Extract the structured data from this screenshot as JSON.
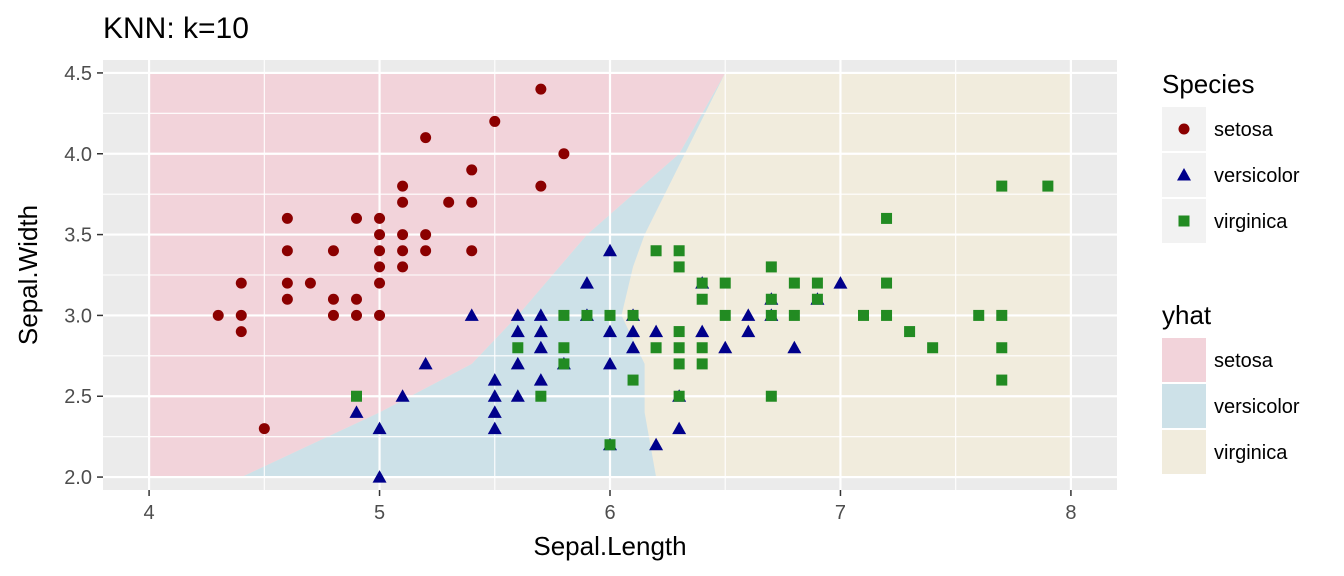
{
  "chart_data": {
    "type": "scatter",
    "title": "KNN: k=10",
    "xlabel": "Sepal.Length",
    "ylabel": "Sepal.Width",
    "xlim": [
      3.8,
      8.2
    ],
    "ylim": [
      1.92,
      4.58
    ],
    "x_ticks": [
      4,
      5,
      6,
      7,
      8
    ],
    "x_tick_labels": [
      "4",
      "5",
      "6",
      "7",
      "8"
    ],
    "y_ticks": [
      2.0,
      2.5,
      3.0,
      3.5,
      4.0,
      4.5
    ],
    "y_tick_labels": [
      "2.0",
      "2.5",
      "3.0",
      "3.5",
      "4.0",
      "4.5"
    ],
    "grid": true,
    "legend_position": "right",
    "legends": [
      {
        "title": "Species",
        "kind": "points",
        "entries": [
          {
            "label": "setosa",
            "color": "#8b0000",
            "shape": "circle"
          },
          {
            "label": "versicolor",
            "color": "#00008b",
            "shape": "triangle"
          },
          {
            "label": "virginica",
            "color": "#228b22",
            "shape": "square"
          }
        ]
      },
      {
        "title": "yhat",
        "kind": "fill",
        "entries": [
          {
            "label": "setosa",
            "color": "#f2d3da"
          },
          {
            "label": "versicolor",
            "color": "#cde1e8"
          },
          {
            "label": "virginica",
            "color": "#f1ecdd"
          }
        ]
      }
    ],
    "decision_regions": {
      "grid_x_range": [
        4.0,
        8.0
      ],
      "grid_y_range": [
        2.0,
        4.5
      ],
      "setosa_versicolor_boundary": [
        [
          4.4,
          2.0
        ],
        [
          5.0,
          2.4
        ],
        [
          5.4,
          2.7
        ],
        [
          5.6,
          3.0
        ],
        [
          5.9,
          3.5
        ],
        [
          6.3,
          4.0
        ],
        [
          6.5,
          4.5
        ]
      ],
      "versicolor_virginica_boundary": [
        [
          6.2,
          2.0
        ],
        [
          6.15,
          2.4
        ],
        [
          6.15,
          2.7
        ],
        [
          6.05,
          3.0
        ],
        [
          6.1,
          3.3
        ],
        [
          6.15,
          3.5
        ]
      ]
    },
    "series": [
      {
        "name": "setosa",
        "color": "#8b0000",
        "shape": "circle",
        "points": [
          [
            5.7,
            4.4
          ],
          [
            5.5,
            4.2
          ],
          [
            5.2,
            4.1
          ],
          [
            5.8,
            4.0
          ],
          [
            5.4,
            3.9
          ],
          [
            5.1,
            3.8
          ],
          [
            5.7,
            3.8
          ],
          [
            5.1,
            3.7
          ],
          [
            5.4,
            3.7
          ],
          [
            5.3,
            3.7
          ],
          [
            4.6,
            3.6
          ],
          [
            5.0,
            3.6
          ],
          [
            4.9,
            3.6
          ],
          [
            5.4,
            3.4
          ],
          [
            5.1,
            3.5
          ],
          [
            5.0,
            3.5
          ],
          [
            5.2,
            3.5
          ],
          [
            4.6,
            3.4
          ],
          [
            4.8,
            3.4
          ],
          [
            5.0,
            3.4
          ],
          [
            5.2,
            3.4
          ],
          [
            5.1,
            3.4
          ],
          [
            5.0,
            3.3
          ],
          [
            5.1,
            3.3
          ],
          [
            4.6,
            3.2
          ],
          [
            4.4,
            3.2
          ],
          [
            4.7,
            3.2
          ],
          [
            5.0,
            3.2
          ],
          [
            4.6,
            3.1
          ],
          [
            4.8,
            3.1
          ],
          [
            4.9,
            3.1
          ],
          [
            5.0,
            3.0
          ],
          [
            4.3,
            3.0
          ],
          [
            4.4,
            3.0
          ],
          [
            4.8,
            3.0
          ],
          [
            4.9,
            3.0
          ],
          [
            4.4,
            2.9
          ],
          [
            4.5,
            2.3
          ]
        ]
      },
      {
        "name": "versicolor",
        "color": "#00008b",
        "shape": "triangle",
        "points": [
          [
            6.0,
            3.4
          ],
          [
            5.9,
            3.2
          ],
          [
            6.4,
            3.2
          ],
          [
            7.0,
            3.2
          ],
          [
            6.7,
            3.1
          ],
          [
            6.9,
            3.1
          ],
          [
            6.7,
            3.0
          ],
          [
            6.6,
            3.0
          ],
          [
            5.9,
            3.0
          ],
          [
            6.1,
            3.0
          ],
          [
            5.4,
            3.0
          ],
          [
            5.6,
            3.0
          ],
          [
            5.7,
            3.0
          ],
          [
            6.0,
            2.9
          ],
          [
            5.6,
            2.9
          ],
          [
            6.1,
            2.9
          ],
          [
            6.2,
            2.9
          ],
          [
            6.6,
            2.9
          ],
          [
            5.7,
            2.9
          ],
          [
            6.4,
            2.9
          ],
          [
            6.1,
            2.8
          ],
          [
            6.8,
            2.8
          ],
          [
            5.7,
            2.8
          ],
          [
            6.5,
            2.8
          ],
          [
            5.8,
            2.7
          ],
          [
            5.2,
            2.7
          ],
          [
            6.0,
            2.7
          ],
          [
            5.6,
            2.7
          ],
          [
            5.5,
            2.6
          ],
          [
            5.7,
            2.6
          ],
          [
            5.5,
            2.5
          ],
          [
            5.1,
            2.5
          ],
          [
            5.6,
            2.5
          ],
          [
            6.3,
            2.5
          ],
          [
            4.9,
            2.4
          ],
          [
            5.5,
            2.4
          ],
          [
            5.0,
            2.3
          ],
          [
            5.5,
            2.3
          ],
          [
            6.3,
            2.3
          ],
          [
            6.2,
            2.2
          ],
          [
            6.0,
            2.2
          ],
          [
            5.0,
            2.0
          ]
        ]
      },
      {
        "name": "virginica",
        "color": "#228b22",
        "shape": "square",
        "points": [
          [
            7.7,
            3.8
          ],
          [
            7.9,
            3.8
          ],
          [
            7.2,
            3.6
          ],
          [
            6.2,
            3.4
          ],
          [
            6.3,
            3.4
          ],
          [
            6.3,
            3.3
          ],
          [
            6.7,
            3.3
          ],
          [
            6.4,
            3.2
          ],
          [
            6.5,
            3.2
          ],
          [
            6.8,
            3.2
          ],
          [
            6.9,
            3.2
          ],
          [
            7.2,
            3.2
          ],
          [
            6.4,
            3.1
          ],
          [
            6.7,
            3.1
          ],
          [
            6.9,
            3.1
          ],
          [
            5.8,
            3.0
          ],
          [
            6.1,
            3.0
          ],
          [
            6.5,
            3.0
          ],
          [
            6.7,
            3.0
          ],
          [
            7.1,
            3.0
          ],
          [
            7.2,
            3.0
          ],
          [
            7.6,
            3.0
          ],
          [
            7.7,
            3.0
          ],
          [
            5.9,
            3.0
          ],
          [
            6.0,
            3.0
          ],
          [
            6.8,
            3.0
          ],
          [
            6.3,
            2.9
          ],
          [
            7.3,
            2.9
          ],
          [
            5.6,
            2.8
          ],
          [
            5.8,
            2.8
          ],
          [
            6.2,
            2.8
          ],
          [
            6.3,
            2.8
          ],
          [
            6.4,
            2.8
          ],
          [
            7.4,
            2.8
          ],
          [
            7.7,
            2.8
          ],
          [
            5.8,
            2.7
          ],
          [
            6.3,
            2.7
          ],
          [
            6.4,
            2.7
          ],
          [
            6.1,
            2.6
          ],
          [
            7.7,
            2.6
          ],
          [
            4.9,
            2.5
          ],
          [
            5.7,
            2.5
          ],
          [
            6.3,
            2.5
          ],
          [
            6.7,
            2.5
          ],
          [
            6.0,
            2.2
          ]
        ]
      }
    ]
  }
}
